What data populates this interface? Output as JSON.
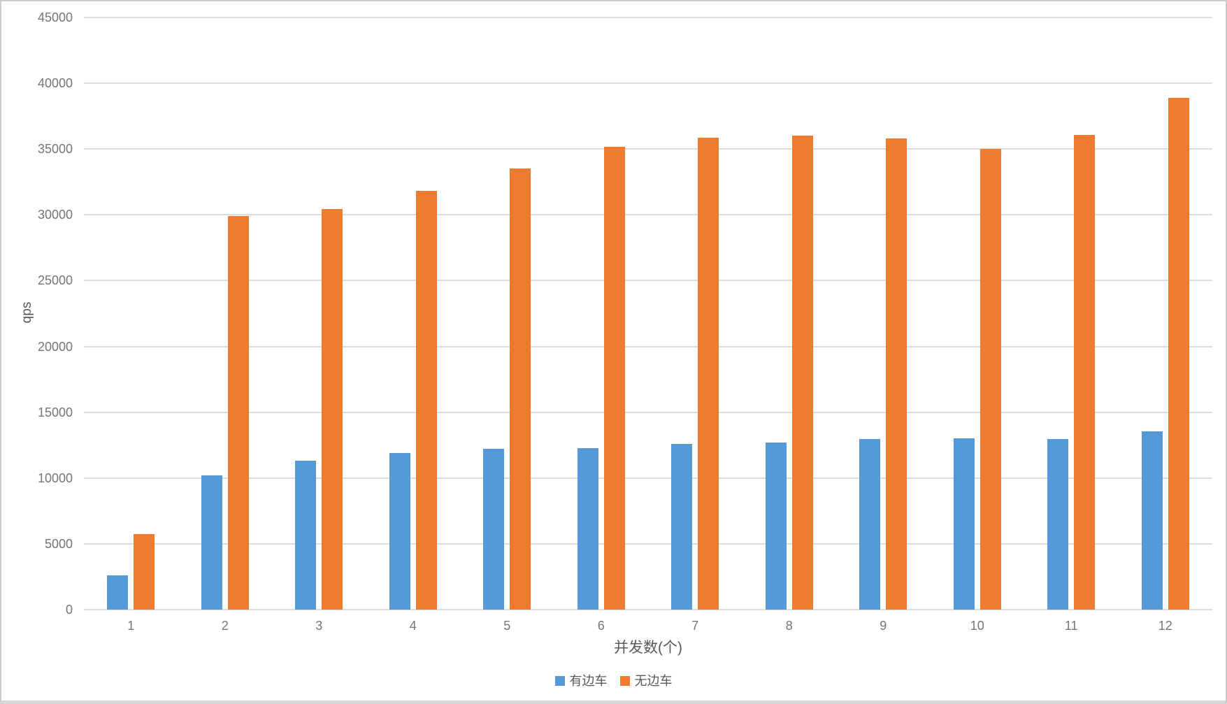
{
  "chart_data": {
    "type": "bar",
    "title": "",
    "xlabel": "并发数(个)",
    "ylabel": "qps",
    "categories": [
      "1",
      "2",
      "3",
      "4",
      "5",
      "6",
      "7",
      "8",
      "9",
      "10",
      "11",
      "12"
    ],
    "series": [
      {
        "name": "有边车",
        "color": "#5599D8",
        "values": [
          2600,
          10200,
          11300,
          11900,
          12200,
          12300,
          12600,
          12700,
          12950,
          13000,
          12950,
          13550
        ]
      },
      {
        "name": "无边车",
        "color": "#ED7C2F",
        "values": [
          5750,
          29900,
          30450,
          31800,
          33550,
          35150,
          35850,
          36000,
          35800,
          35000,
          36050,
          38900
        ]
      }
    ],
    "ylim": [
      0,
      45000
    ],
    "yticks": [
      0,
      5000,
      10000,
      15000,
      20000,
      25000,
      30000,
      35000,
      40000,
      45000
    ],
    "grid": true,
    "legend_position": "bottom",
    "gridline_color": "#dcdcdc",
    "tick_text_color": "#757575",
    "label_text_color": "#595959"
  }
}
